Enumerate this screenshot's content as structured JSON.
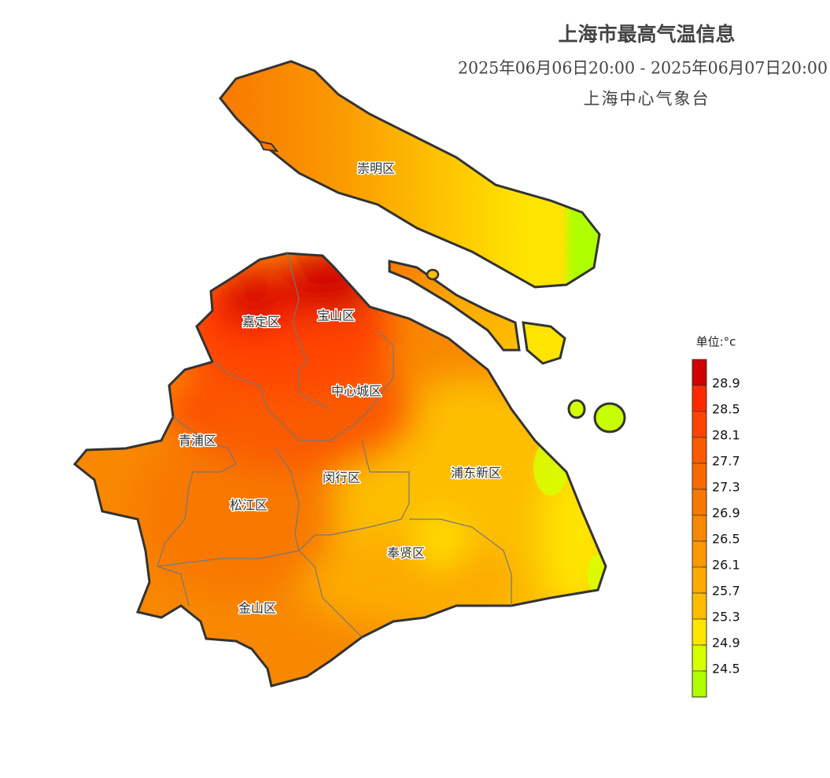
{
  "header": {
    "title": "上海市最高气温信息",
    "subtitle": "2025年06月06日20:00 - 2025年06月07日20:00",
    "agency": "上海中心气象台"
  },
  "districts": [
    {
      "label": "崇明区"
    },
    {
      "label": "嘉定区"
    },
    {
      "label": "宝山区"
    },
    {
      "label": "中心城区"
    },
    {
      "label": "青浦区"
    },
    {
      "label": "闵行区"
    },
    {
      "label": "浦东新区"
    },
    {
      "label": "松江区"
    },
    {
      "label": "奉贤区"
    },
    {
      "label": "金山区"
    }
  ],
  "legend": {
    "unit": "单位:°c",
    "ticks": [
      28.9,
      28.5,
      28.1,
      27.7,
      27.3,
      26.9,
      26.5,
      26.1,
      25.7,
      25.3,
      24.9,
      24.5
    ],
    "colors": [
      "#d00000",
      "#ff2a00",
      "#ff4400",
      "#fa5a00",
      "#f86a00",
      "#f87800",
      "#f88800",
      "#fa9800",
      "#fcaa00",
      "#fdbe00",
      "#ffe400",
      "#d6ff00",
      "#b0ff00"
    ]
  }
}
